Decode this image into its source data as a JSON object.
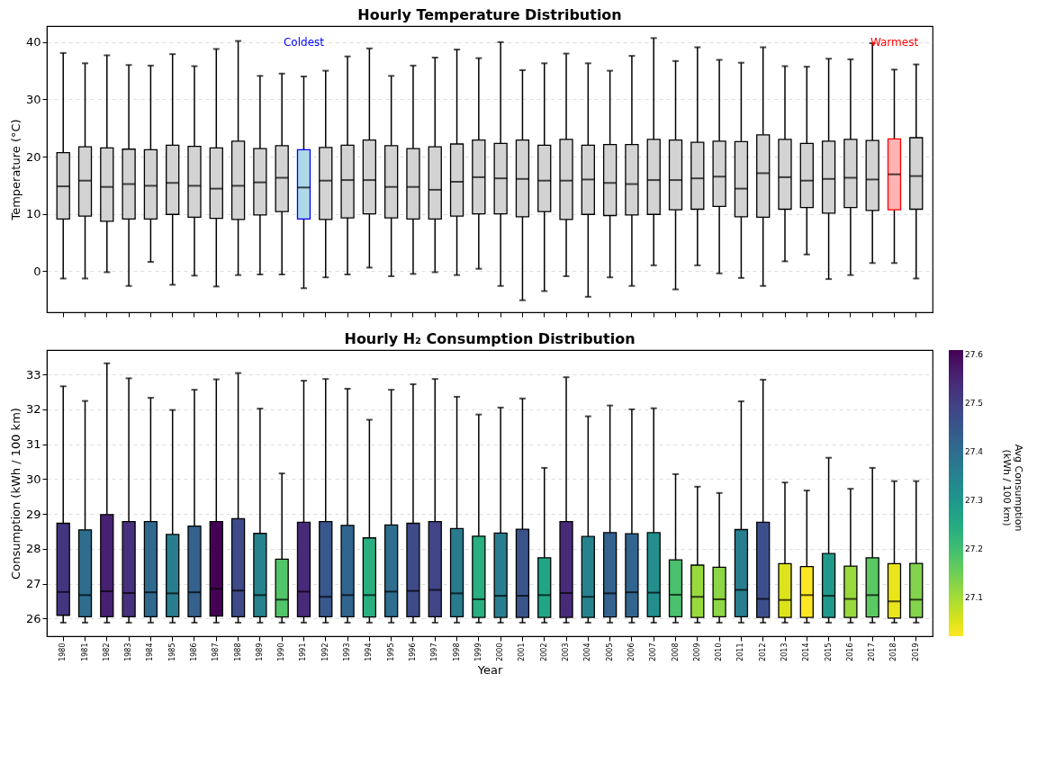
{
  "chart_data": [
    {
      "type": "box",
      "title": "Hourly Temperature Distribution",
      "ylabel": "Temperature (°C)",
      "categories": [
        "1980",
        "1981",
        "1982",
        "1983",
        "1984",
        "1985",
        "1986",
        "1987",
        "1988",
        "1989",
        "1990",
        "1991",
        "1992",
        "1993",
        "1994",
        "1995",
        "1996",
        "1997",
        "1998",
        "1999",
        "2000",
        "2001",
        "2002",
        "2003",
        "2004",
        "2005",
        "2006",
        "2007",
        "2008",
        "2009",
        "2010",
        "2011",
        "2012",
        "2013",
        "2014",
        "2015",
        "2016",
        "2017",
        "2018",
        "2019"
      ],
      "boxes": [
        {
          "low": -1.3,
          "q1": 9.1,
          "median": 14.8,
          "q3": 20.7,
          "high": 38.1
        },
        {
          "low": -1.3,
          "q1": 9.6,
          "median": 15.8,
          "q3": 21.7,
          "high": 36.3
        },
        {
          "low": -0.2,
          "q1": 8.7,
          "median": 14.7,
          "q3": 21.5,
          "high": 37.7
        },
        {
          "low": -2.6,
          "q1": 9.1,
          "median": 15.2,
          "q3": 21.3,
          "high": 36.0
        },
        {
          "low": 1.6,
          "q1": 9.1,
          "median": 14.9,
          "q3": 21.2,
          "high": 35.9
        },
        {
          "low": -2.4,
          "q1": 9.9,
          "median": 15.4,
          "q3": 22.0,
          "high": 37.9
        },
        {
          "low": -0.8,
          "q1": 9.4,
          "median": 14.9,
          "q3": 21.8,
          "high": 35.8
        },
        {
          "low": -2.7,
          "q1": 9.2,
          "median": 14.4,
          "q3": 21.5,
          "high": 38.8
        },
        {
          "low": -0.7,
          "q1": 9.0,
          "median": 14.9,
          "q3": 22.7,
          "high": 40.2
        },
        {
          "low": -0.6,
          "q1": 9.8,
          "median": 15.5,
          "q3": 21.4,
          "high": 34.1
        },
        {
          "low": -0.6,
          "q1": 10.4,
          "median": 16.3,
          "q3": 21.9,
          "high": 34.5
        },
        {
          "low": -3.0,
          "q1": 9.1,
          "median": 14.6,
          "q3": 21.2,
          "high": 34.0
        },
        {
          "low": -1.1,
          "q1": 9.0,
          "median": 15.8,
          "q3": 21.6,
          "high": 35.0
        },
        {
          "low": -0.6,
          "q1": 9.3,
          "median": 15.9,
          "q3": 22.0,
          "high": 37.5
        },
        {
          "low": 0.6,
          "q1": 10.0,
          "median": 15.9,
          "q3": 22.9,
          "high": 38.9
        },
        {
          "low": -0.9,
          "q1": 9.3,
          "median": 14.7,
          "q3": 21.9,
          "high": 34.1
        },
        {
          "low": -0.5,
          "q1": 9.1,
          "median": 14.7,
          "q3": 21.4,
          "high": 35.9
        },
        {
          "low": -0.2,
          "q1": 9.1,
          "median": 14.2,
          "q3": 21.7,
          "high": 37.3
        },
        {
          "low": -0.7,
          "q1": 9.6,
          "median": 15.6,
          "q3": 22.2,
          "high": 38.7
        },
        {
          "low": 0.4,
          "q1": 10.0,
          "median": 16.4,
          "q3": 22.9,
          "high": 37.2
        },
        {
          "low": -2.6,
          "q1": 10.0,
          "median": 16.2,
          "q3": 22.3,
          "high": 40.0
        },
        {
          "low": -5.1,
          "q1": 9.5,
          "median": 16.1,
          "q3": 22.9,
          "high": 35.1
        },
        {
          "low": -3.5,
          "q1": 10.4,
          "median": 15.8,
          "q3": 22.0,
          "high": 36.3
        },
        {
          "low": -0.9,
          "q1": 9.0,
          "median": 15.8,
          "q3": 23.0,
          "high": 38.0
        },
        {
          "low": -4.5,
          "q1": 9.9,
          "median": 16.0,
          "q3": 22.0,
          "high": 36.3
        },
        {
          "low": -1.1,
          "q1": 9.7,
          "median": 15.4,
          "q3": 22.1,
          "high": 35.0
        },
        {
          "low": -2.6,
          "q1": 9.8,
          "median": 15.2,
          "q3": 22.1,
          "high": 37.6
        },
        {
          "low": 1.0,
          "q1": 9.9,
          "median": 15.9,
          "q3": 23.0,
          "high": 40.7
        },
        {
          "low": -3.2,
          "q1": 10.7,
          "median": 15.9,
          "q3": 22.9,
          "high": 36.7
        },
        {
          "low": 1.0,
          "q1": 10.8,
          "median": 16.2,
          "q3": 22.5,
          "high": 39.1
        },
        {
          "low": -0.4,
          "q1": 11.3,
          "median": 16.5,
          "q3": 22.7,
          "high": 36.9
        },
        {
          "low": -1.2,
          "q1": 9.5,
          "median": 14.4,
          "q3": 22.6,
          "high": 36.4
        },
        {
          "low": -2.6,
          "q1": 9.4,
          "median": 17.1,
          "q3": 23.8,
          "high": 39.1
        },
        {
          "low": 1.7,
          "q1": 10.8,
          "median": 16.4,
          "q3": 23.0,
          "high": 35.8
        },
        {
          "low": 2.9,
          "q1": 11.1,
          "median": 15.8,
          "q3": 22.3,
          "high": 35.7
        },
        {
          "low": -1.4,
          "q1": 10.1,
          "median": 16.1,
          "q3": 22.7,
          "high": 37.1
        },
        {
          "low": -0.7,
          "q1": 11.1,
          "median": 16.3,
          "q3": 23.0,
          "high": 37.0
        },
        {
          "low": 1.4,
          "q1": 10.6,
          "median": 16.0,
          "q3": 22.8,
          "high": 39.8
        },
        {
          "low": 1.4,
          "q1": 10.7,
          "median": 16.9,
          "q3": 23.1,
          "high": 35.2
        },
        {
          "low": -1.3,
          "q1": 10.8,
          "median": 16.6,
          "q3": 23.3,
          "high": 36.1
        }
      ],
      "colors": [
        "#d3d3d3",
        "#d3d3d3",
        "#d3d3d3",
        "#d3d3d3",
        "#d3d3d3",
        "#d3d3d3",
        "#d3d3d3",
        "#d3d3d3",
        "#d3d3d3",
        "#d3d3d3",
        "#d3d3d3",
        "#add8e6",
        "#d3d3d3",
        "#d3d3d3",
        "#d3d3d3",
        "#d3d3d3",
        "#d3d3d3",
        "#d3d3d3",
        "#d3d3d3",
        "#d3d3d3",
        "#d3d3d3",
        "#d3d3d3",
        "#d3d3d3",
        "#d3d3d3",
        "#d3d3d3",
        "#d3d3d3",
        "#d3d3d3",
        "#d3d3d3",
        "#d3d3d3",
        "#d3d3d3",
        "#d3d3d3",
        "#d3d3d3",
        "#d3d3d3",
        "#d3d3d3",
        "#d3d3d3",
        "#d3d3d3",
        "#d3d3d3",
        "#d3d3d3",
        "#ffb3b3",
        "#d3d3d3"
      ],
      "ylim": [
        -7.2,
        42.8
      ],
      "yticks": [
        0,
        10,
        20,
        30,
        40
      ],
      "grid": "y",
      "tick_labels": "y",
      "annotations": [
        "Coldest",
        "Warmest"
      ]
    },
    {
      "type": "box",
      "title": "Hourly H₂ Consumption Distribution",
      "xlabel": "Year",
      "ylabel": "Consumption (kWh / 100 km)",
      "clabel": "Avg Consumption\n(kWh / 100 km)",
      "categories": [
        "1980",
        "1981",
        "1982",
        "1983",
        "1984",
        "1985",
        "1986",
        "1987",
        "1988",
        "1989",
        "1990",
        "1991",
        "1992",
        "1993",
        "1994",
        "1995",
        "1996",
        "1997",
        "1998",
        "1999",
        "2000",
        "2001",
        "2002",
        "2003",
        "2004",
        "2005",
        "2006",
        "2007",
        "2008",
        "2009",
        "2010",
        "2011",
        "2012",
        "2013",
        "2014",
        "2015",
        "2016",
        "2017",
        "2018",
        "2019"
      ],
      "boxes": [
        {
          "low": 25.88,
          "q1": 26.09,
          "median": 26.76,
          "q3": 28.73,
          "high": 32.66
        },
        {
          "low": 25.88,
          "q1": 26.05,
          "median": 26.67,
          "q3": 28.54,
          "high": 32.24
        },
        {
          "low": 25.88,
          "q1": 26.05,
          "median": 26.78,
          "q3": 28.98,
          "high": 33.32
        },
        {
          "low": 25.88,
          "q1": 26.05,
          "median": 26.73,
          "q3": 28.78,
          "high": 32.89
        },
        {
          "low": 25.88,
          "q1": 26.05,
          "median": 26.75,
          "q3": 28.78,
          "high": 32.33
        },
        {
          "low": 25.88,
          "q1": 26.05,
          "median": 26.72,
          "q3": 28.41,
          "high": 31.98
        },
        {
          "low": 25.88,
          "q1": 26.05,
          "median": 26.75,
          "q3": 28.65,
          "high": 32.56
        },
        {
          "low": 25.88,
          "q1": 26.07,
          "median": 26.85,
          "q3": 28.78,
          "high": 32.86
        },
        {
          "low": 25.88,
          "q1": 26.05,
          "median": 26.8,
          "q3": 28.86,
          "high": 33.04
        },
        {
          "low": 25.88,
          "q1": 26.05,
          "median": 26.67,
          "q3": 28.44,
          "high": 32.02
        },
        {
          "low": 25.88,
          "q1": 26.04,
          "median": 26.54,
          "q3": 27.7,
          "high": 30.16
        },
        {
          "low": 25.88,
          "q1": 26.05,
          "median": 26.77,
          "q3": 28.76,
          "high": 32.82
        },
        {
          "low": 25.88,
          "q1": 26.05,
          "median": 26.62,
          "q3": 28.78,
          "high": 32.87
        },
        {
          "low": 25.88,
          "q1": 26.05,
          "median": 26.67,
          "q3": 28.67,
          "high": 32.59
        },
        {
          "low": 25.88,
          "q1": 26.04,
          "median": 26.67,
          "q3": 28.31,
          "high": 31.7
        },
        {
          "low": 25.88,
          "q1": 26.05,
          "median": 26.77,
          "q3": 28.68,
          "high": 32.56
        },
        {
          "low": 25.88,
          "q1": 26.05,
          "median": 26.79,
          "q3": 28.73,
          "high": 32.72
        },
        {
          "low": 25.88,
          "q1": 26.05,
          "median": 26.82,
          "q3": 28.78,
          "high": 32.87
        },
        {
          "low": 25.88,
          "q1": 26.05,
          "median": 26.72,
          "q3": 28.58,
          "high": 32.36
        },
        {
          "low": 25.88,
          "q1": 26.03,
          "median": 26.55,
          "q3": 28.36,
          "high": 31.85
        },
        {
          "low": 25.88,
          "q1": 26.03,
          "median": 26.65,
          "q3": 28.45,
          "high": 32.05
        },
        {
          "low": 25.88,
          "q1": 26.03,
          "median": 26.65,
          "q3": 28.56,
          "high": 32.31
        },
        {
          "low": 25.88,
          "q1": 26.03,
          "median": 26.67,
          "q3": 27.74,
          "high": 30.32
        },
        {
          "low": 25.88,
          "q1": 26.03,
          "median": 26.73,
          "q3": 28.78,
          "high": 32.92
        },
        {
          "low": 25.88,
          "q1": 26.03,
          "median": 26.62,
          "q3": 28.35,
          "high": 31.8
        },
        {
          "low": 25.88,
          "q1": 26.04,
          "median": 26.72,
          "q3": 28.46,
          "high": 32.11
        },
        {
          "low": 25.88,
          "q1": 26.04,
          "median": 26.75,
          "q3": 28.43,
          "high": 32.0
        },
        {
          "low": 25.88,
          "q1": 26.05,
          "median": 26.74,
          "q3": 28.46,
          "high": 32.03
        },
        {
          "low": 25.88,
          "q1": 26.05,
          "median": 26.68,
          "q3": 27.68,
          "high": 30.14
        },
        {
          "low": 25.88,
          "q1": 26.03,
          "median": 26.62,
          "q3": 27.53,
          "high": 29.78
        },
        {
          "low": 25.88,
          "q1": 26.05,
          "median": 26.55,
          "q3": 27.47,
          "high": 29.6
        },
        {
          "low": 25.88,
          "q1": 26.05,
          "median": 26.82,
          "q3": 28.55,
          "high": 32.23
        },
        {
          "low": 25.88,
          "q1": 26.03,
          "median": 26.56,
          "q3": 28.76,
          "high": 32.85
        },
        {
          "low": 25.88,
          "q1": 26.03,
          "median": 26.53,
          "q3": 27.57,
          "high": 29.9
        },
        {
          "low": 25.88,
          "q1": 26.03,
          "median": 26.67,
          "q3": 27.49,
          "high": 29.67
        },
        {
          "low": 25.88,
          "q1": 26.03,
          "median": 26.65,
          "q3": 27.86,
          "high": 30.61
        },
        {
          "low": 25.88,
          "q1": 26.03,
          "median": 26.56,
          "q3": 27.5,
          "high": 29.72
        },
        {
          "low": 25.88,
          "q1": 26.04,
          "median": 26.67,
          "q3": 27.74,
          "high": 30.32
        },
        {
          "low": 25.88,
          "q1": 26.01,
          "median": 26.49,
          "q3": 27.57,
          "high": 29.94
        },
        {
          "low": 25.88,
          "q1": 26.03,
          "median": 26.54,
          "q3": 27.58,
          "high": 29.94
        }
      ],
      "cvalues": [
        27.52,
        27.4,
        27.56,
        27.53,
        27.41,
        27.36,
        27.43,
        27.61,
        27.48,
        27.35,
        27.18,
        27.54,
        27.45,
        27.42,
        27.24,
        27.4,
        27.48,
        27.49,
        27.37,
        27.24,
        27.36,
        27.46,
        27.26,
        27.54,
        27.35,
        27.43,
        27.42,
        27.32,
        27.19,
        27.11,
        27.12,
        27.36,
        27.47,
        27.05,
        27.02,
        27.29,
        27.11,
        27.17,
        27.04,
        27.13
      ],
      "clim": [
        27.02,
        27.61
      ],
      "cticks": [
        27.1,
        27.2,
        27.3,
        27.4,
        27.5,
        27.6
      ],
      "ylim": [
        25.49,
        33.7
      ],
      "yticks": [
        26,
        27,
        28,
        29,
        30,
        31,
        32,
        33
      ],
      "grid": "y"
    }
  ]
}
